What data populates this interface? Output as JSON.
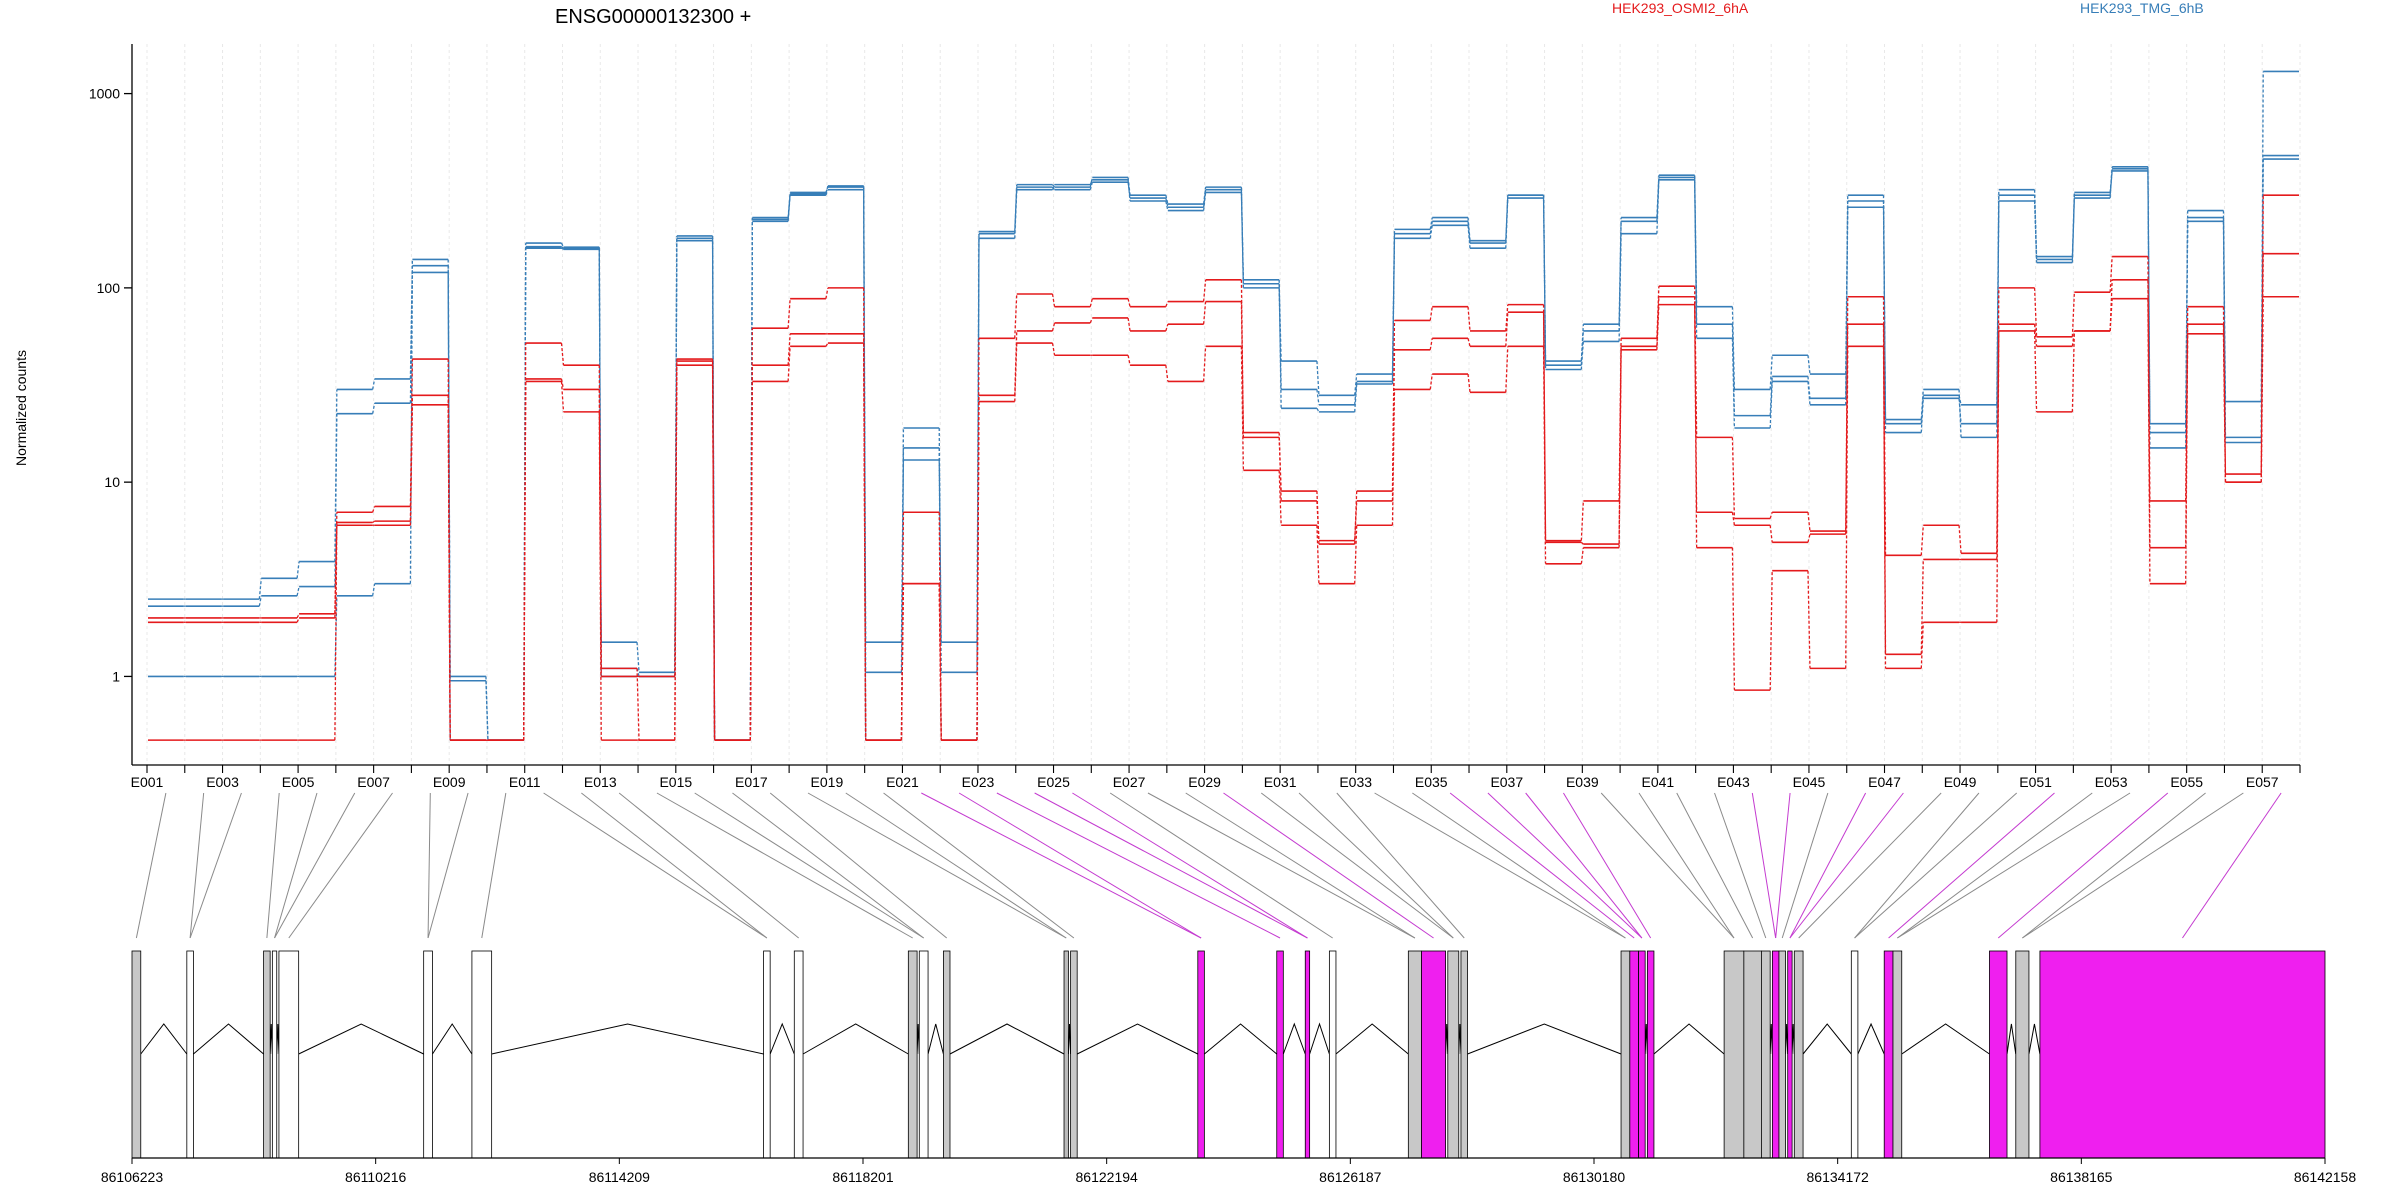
{
  "chart_data": {
    "type": "line",
    "title": "ENSG00000132300 +",
    "ylabel": "Normalized counts",
    "xlabel": "",
    "yscale": "log",
    "ylim": [
      0.35,
      1800
    ],
    "yticks": [
      1,
      10,
      100,
      1000
    ],
    "ytick_labels": [
      "1",
      "10",
      "100",
      "1000"
    ],
    "legend_placement": "top",
    "legend": [
      {
        "name": "HEK293_OSMI2_6hA",
        "color": "#e41a1c"
      },
      {
        "name": "HEK293_TMG_6hB",
        "color": "#377eb8"
      }
    ],
    "exons": [
      "E001",
      "E002",
      "E003",
      "E004",
      "E005",
      "E006",
      "E007",
      "E008",
      "E009",
      "E010",
      "E011",
      "E012",
      "E013",
      "E014",
      "E015",
      "E016",
      "E017",
      "E018",
      "E019",
      "E020",
      "E021",
      "E022",
      "E023",
      "E024",
      "E025",
      "E026",
      "E027",
      "E028",
      "E029",
      "E030",
      "E031",
      "E032",
      "E033",
      "E034",
      "E035",
      "E036",
      "E037",
      "E038",
      "E039",
      "E040",
      "E041",
      "E042",
      "E043",
      "E044",
      "E045",
      "E046",
      "E047",
      "E048",
      "E049",
      "E050",
      "E051",
      "E052",
      "E053",
      "E054",
      "E055",
      "E056",
      "E057"
    ],
    "exon_labels_shown": [
      "E001",
      "E003",
      "E005",
      "E007",
      "E009",
      "E011",
      "E013",
      "E015",
      "E017",
      "E019",
      "E021",
      "E023",
      "E025",
      "E027",
      "E029",
      "E031",
      "E033",
      "E035",
      "E037",
      "E039",
      "E041",
      "E043",
      "E045",
      "E047",
      "E049",
      "E051",
      "E053",
      "E055",
      "E057"
    ],
    "series": [
      {
        "name": "HEK293_TMG_6hB",
        "color": "#377eb8",
        "values": [
          1.0,
          1.0,
          1.0,
          1.0,
          1.0,
          2.6,
          3.0,
          120,
          0.47,
          0.47,
          160,
          158,
          1.1,
          1.0,
          180,
          0.47,
          220,
          300,
          320,
          0.47,
          15,
          0.47,
          190,
          330,
          320,
          350,
          290,
          260,
          320,
          100,
          30,
          25,
          33,
          190,
          220,
          170,
          290,
          40,
          60,
          220,
          370,
          65,
          22,
          35,
          27,
          280,
          18,
          27,
          20,
          300,
          135,
          300,
          400,
          18,
          230,
          17,
          460
        ]
      },
      {
        "name": "HEK293_TMG_6hB",
        "color": "#377eb8",
        "values": [
          2.3,
          2.3,
          2.3,
          2.6,
          2.9,
          22.5,
          25.5,
          130,
          0.95,
          0.47,
          170,
          162,
          1.5,
          1.05,
          185,
          0.47,
          230,
          310,
          330,
          1.05,
          19,
          1.05,
          195,
          340,
          330,
          370,
          300,
          270,
          330,
          105,
          42,
          28,
          36,
          200,
          230,
          175,
          300,
          42,
          65,
          230,
          380,
          80,
          30,
          45,
          36,
          300,
          20,
          28,
          25,
          320,
          145,
          310,
          410,
          20,
          250,
          26,
          480
        ]
      },
      {
        "name": "HEK293_TMG_6hB",
        "color": "#377eb8",
        "values": [
          2.5,
          2.5,
          2.5,
          3.2,
          3.9,
          30,
          34,
          140,
          1.0,
          0.47,
          163,
          160,
          1.0,
          1.0,
          175,
          0.47,
          225,
          305,
          335,
          1.5,
          13,
          1.5,
          180,
          320,
          340,
          360,
          280,
          250,
          310,
          110,
          24,
          23,
          32,
          180,
          210,
          160,
          300,
          38,
          53,
          190,
          360,
          55,
          19,
          33,
          25,
          260,
          21,
          30,
          17,
          280,
          140,
          290,
          420,
          15,
          220,
          16,
          1300
        ]
      },
      {
        "name": "HEK293_OSMI2_6hA",
        "color": "#e41a1c",
        "values": [
          1.9,
          1.9,
          1.9,
          1.9,
          2.0,
          6.0,
          6.0,
          25,
          0.47,
          0.47,
          33,
          23,
          0.47,
          0.47,
          40,
          0.47,
          33,
          50,
          52,
          0.47,
          3.0,
          0.47,
          26,
          52,
          45,
          45,
          40,
          33,
          50,
          11.5,
          6.0,
          3.0,
          6.0,
          30,
          36,
          29,
          50,
          3.8,
          4.6,
          48,
          82,
          4.6,
          0.85,
          3.5,
          1.1,
          50,
          1.1,
          1.9,
          1.9,
          60,
          23,
          60,
          88,
          3.0,
          58,
          10,
          90
        ]
      },
      {
        "name": "HEK293_OSMI2_6hA",
        "color": "#e41a1c",
        "values": [
          0.47,
          0.47,
          0.47,
          0.47,
          0.47,
          6.2,
          6.3,
          28,
          0.47,
          0.47,
          34,
          30,
          1.1,
          0.47,
          42,
          0.47,
          40,
          58,
          58,
          0.47,
          7.0,
          0.47,
          28,
          60,
          66,
          70,
          60,
          65,
          85,
          18,
          8.0,
          5.0,
          8.0,
          48,
          55,
          50,
          75,
          4.9,
          4.8,
          50,
          90,
          7.0,
          6.0,
          4.9,
          5.4,
          65,
          1.3,
          4.0,
          4.0,
          65,
          50,
          60,
          110,
          4.6,
          65,
          10,
          150
        ]
      },
      {
        "name": "HEK293_OSMI2_6hA",
        "color": "#e41a1c",
        "values": [
          2.0,
          2.0,
          2.0,
          2.0,
          2.1,
          7.0,
          7.5,
          43,
          0.47,
          0.47,
          52,
          40,
          1.0,
          1.0,
          43,
          0.47,
          62,
          88,
          100,
          0.47,
          3.0,
          0.47,
          55,
          93,
          80,
          88,
          80,
          85,
          110,
          17,
          9.0,
          4.8,
          9.0,
          68,
          80,
          60,
          82,
          5.0,
          8.0,
          55,
          102,
          17,
          6.5,
          7.0,
          5.6,
          90,
          4.2,
          6.0,
          4.3,
          100,
          56,
          95,
          145,
          8.0,
          80,
          11,
          300
        ]
      }
    ],
    "genome_axis": {
      "tick_labels": [
        "86106223",
        "86110216",
        "86114209",
        "86118201",
        "86122194",
        "86126187",
        "86130180",
        "86134172",
        "86138165",
        "86142158"
      ],
      "range": [
        86106223,
        86142158
      ]
    },
    "highlight_color": "#ef1fef",
    "exon_fill": "#c8c8c8"
  }
}
